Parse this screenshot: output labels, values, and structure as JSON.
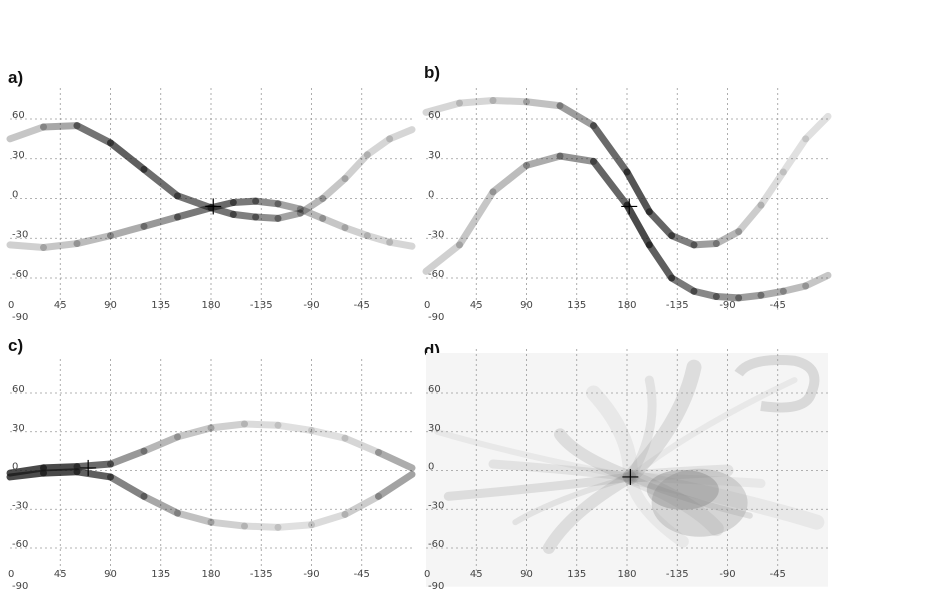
{
  "chart_data": [
    {
      "type": "line",
      "panel_label": "a)",
      "x_ticks": [
        "0",
        "45",
        "90",
        "135",
        "180",
        "-135",
        "-90",
        "-45"
      ],
      "y_ticks": [
        "60",
        "30",
        "0",
        "-30",
        "-60",
        "-90"
      ],
      "xlim": [
        0,
        360
      ],
      "ylim": [
        -90,
        90
      ],
      "grid": true,
      "series": [
        {
          "x": [
            0,
            30,
            60,
            90,
            120,
            150,
            180,
            200,
            220,
            240,
            260,
            280,
            300,
            320,
            340,
            360
          ],
          "y": [
            45,
            54,
            55,
            42,
            22,
            2,
            -7,
            -12,
            -14,
            -15,
            -11,
            0,
            15,
            33,
            45,
            52
          ],
          "alpha": [
            0.25,
            0.3,
            0.55,
            0.8,
            0.75,
            0.65,
            0.7,
            0.65,
            0.6,
            0.5,
            0.4,
            0.3,
            0.25,
            0.2,
            0.2,
            0.2
          ]
        },
        {
          "x": [
            0,
            30,
            60,
            90,
            120,
            150,
            180,
            200,
            220,
            240,
            260,
            280,
            300,
            320,
            340,
            360
          ],
          "y": [
            -35,
            -37,
            -34,
            -28,
            -21,
            -14,
            -7,
            -3,
            -2,
            -4,
            -8,
            -15,
            -22,
            -28,
            -33,
            -36
          ],
          "alpha": [
            0.2,
            0.25,
            0.3,
            0.35,
            0.45,
            0.55,
            0.75,
            0.7,
            0.6,
            0.5,
            0.4,
            0.3,
            0.25,
            0.2,
            0.2,
            0.2
          ]
        }
      ],
      "marker": {
        "x": 182,
        "y": -6
      }
    },
    {
      "type": "line",
      "panel_label": "b)",
      "x_ticks": [
        "0",
        "45",
        "90",
        "135",
        "180",
        "-135",
        "-90",
        "-45"
      ],
      "y_ticks": [
        "60",
        "30",
        "0",
        "-30",
        "-60",
        "-90"
      ],
      "xlim": [
        0,
        360
      ],
      "ylim": [
        -90,
        90
      ],
      "grid": true,
      "series": [
        {
          "x": [
            0,
            30,
            60,
            90,
            120,
            150,
            180,
            200,
            220,
            240,
            260,
            280,
            300,
            320,
            340,
            360
          ],
          "y": [
            65,
            72,
            74,
            73,
            70,
            55,
            20,
            -10,
            -28,
            -35,
            -34,
            -25,
            -5,
            20,
            45,
            62
          ],
          "alpha": [
            0.2,
            0.2,
            0.2,
            0.25,
            0.35,
            0.6,
            0.85,
            0.8,
            0.7,
            0.55,
            0.4,
            0.3,
            0.2,
            0.15,
            0.15,
            0.15
          ]
        },
        {
          "x": [
            0,
            30,
            60,
            90,
            120,
            150,
            180,
            200,
            220,
            240,
            260,
            280,
            300,
            320,
            340,
            360
          ],
          "y": [
            -55,
            -35,
            5,
            25,
            32,
            28,
            -5,
            -35,
            -60,
            -70,
            -74,
            -75,
            -73,
            -70,
            -66,
            -58
          ],
          "alpha": [
            0.2,
            0.25,
            0.3,
            0.35,
            0.45,
            0.6,
            0.9,
            0.85,
            0.7,
            0.6,
            0.55,
            0.5,
            0.45,
            0.35,
            0.3,
            0.25
          ]
        }
      ],
      "marker": {
        "x": 182,
        "y": -6
      }
    },
    {
      "type": "line",
      "panel_label": "c)",
      "x_ticks": [
        "0",
        "45",
        "90",
        "135",
        "180",
        "-135",
        "-90",
        "-45"
      ],
      "y_ticks": [
        "60",
        "30",
        "0",
        "-30",
        "-60",
        "-90"
      ],
      "xlim": [
        0,
        360
      ],
      "ylim": [
        -90,
        90
      ],
      "grid": true,
      "series": [
        {
          "x": [
            0,
            30,
            60,
            90,
            120,
            150,
            180,
            210,
            240,
            270,
            300,
            330,
            360
          ],
          "y": [
            -2,
            2,
            3,
            5,
            15,
            26,
            33,
            36,
            35,
            31,
            25,
            14,
            2
          ],
          "alpha": [
            0.85,
            0.9,
            0.85,
            0.6,
            0.4,
            0.3,
            0.25,
            0.2,
            0.15,
            0.15,
            0.15,
            0.25,
            0.55
          ]
        },
        {
          "x": [
            0,
            30,
            60,
            90,
            120,
            150,
            180,
            210,
            240,
            270,
            300,
            330,
            360
          ],
          "y": [
            -5,
            -2,
            -1,
            -5,
            -20,
            -33,
            -40,
            -43,
            -44,
            -42,
            -34,
            -20,
            -3
          ],
          "alpha": [
            0.85,
            0.9,
            0.85,
            0.7,
            0.5,
            0.35,
            0.25,
            0.2,
            0.15,
            0.15,
            0.2,
            0.3,
            0.6
          ]
        }
      ],
      "marker": {
        "x": 70,
        "y": 2
      }
    },
    {
      "type": "heatmap",
      "panel_label": "d)",
      "x_ticks": [
        "0",
        "45",
        "90",
        "135",
        "180",
        "-135",
        "-90",
        "-45"
      ],
      "y_ticks": [
        "60",
        "30",
        "0",
        "-30",
        "-60",
        "-90"
      ],
      "xlim": [
        0,
        360
      ],
      "ylim": [
        -90,
        90
      ],
      "grid": true,
      "marker": {
        "x": 183,
        "y": -5
      }
    }
  ]
}
